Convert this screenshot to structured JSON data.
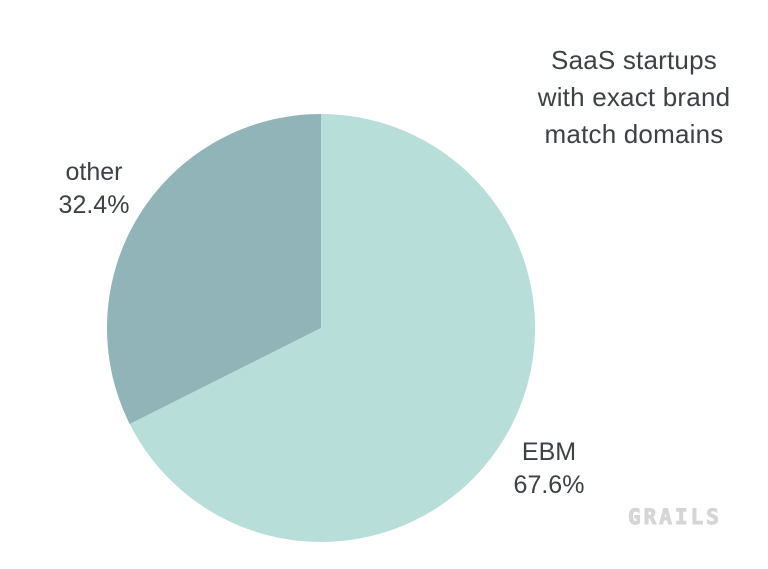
{
  "page": {
    "background": "#ffffff"
  },
  "title": {
    "lines": [
      "SaaS startups",
      "with exact brand",
      "match domains"
    ],
    "color": "#3d4145"
  },
  "chart_data": {
    "type": "pie",
    "title": "SaaS startups with exact brand match domains",
    "start_angle_deg": 0,
    "direction": "clockwise",
    "legend_position": "none",
    "labels_outside": true,
    "slices": [
      {
        "label": "EBM",
        "value": 67.6,
        "display": "67.6%",
        "color": "#b8deda"
      },
      {
        "label": "other",
        "value": 32.4,
        "display": "32.4%",
        "color": "#90b4b7"
      }
    ]
  },
  "logo": {
    "text": "GRAILS",
    "color": "#d6d6d6"
  }
}
